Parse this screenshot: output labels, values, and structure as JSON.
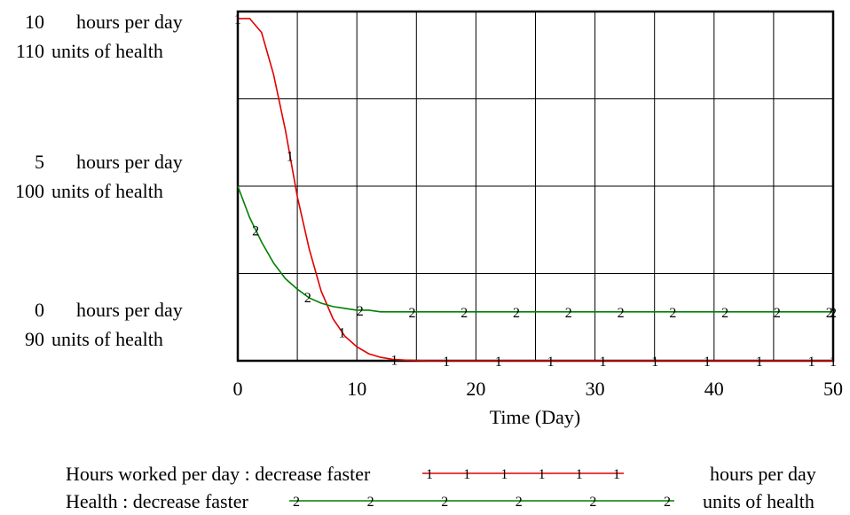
{
  "chart_data": {
    "type": "line",
    "xlabel": "Time (Day)",
    "xlim": [
      0,
      50
    ],
    "x_ticks": [
      "0",
      "10",
      "20",
      "30",
      "40",
      "50"
    ],
    "grid": true,
    "legend_placement": "bottom",
    "axes": {
      "hours": {
        "unit": "hours per day",
        "ylim": [
          0,
          10
        ],
        "tick_values": [
          "10",
          "5",
          "0"
        ],
        "tick_units": [
          "hours per day",
          "hours per day",
          "hours per day"
        ]
      },
      "health": {
        "unit": "units of health",
        "ylim": [
          90,
          110
        ],
        "tick_values": [
          "110",
          "100",
          "90"
        ],
        "tick_units": [
          "units of health",
          "units of health",
          "units of health"
        ]
      }
    },
    "series": [
      {
        "name": "Hours worked per day : decrease faster",
        "marker": "1",
        "color": "#e00000",
        "axis": "hours",
        "unit": "hours per day",
        "x": [
          0,
          1,
          2,
          3,
          4,
          5,
          6,
          7,
          8,
          9,
          10,
          11,
          12,
          13,
          14,
          15,
          16,
          20,
          30,
          40,
          50
        ],
        "y": [
          9.8,
          9.8,
          9.4,
          8.2,
          6.6,
          4.7,
          3.2,
          2.0,
          1.2,
          0.7,
          0.4,
          0.2,
          0.1,
          0.04,
          0.02,
          0.01,
          0,
          0,
          0,
          0,
          0
        ]
      },
      {
        "name": "Health : decrease faster",
        "marker": "2",
        "color": "#008000",
        "axis": "health",
        "unit": "units of health",
        "x": [
          0,
          1,
          2,
          3,
          4,
          5,
          6,
          7,
          8,
          9,
          10,
          11,
          12,
          15,
          20,
          30,
          40,
          50
        ],
        "y": [
          100,
          98.2,
          96.8,
          95.6,
          94.7,
          94.1,
          93.6,
          93.3,
          93.1,
          93.0,
          92.9,
          92.9,
          92.8,
          92.8,
          92.8,
          92.8,
          92.8,
          92.8
        ]
      }
    ],
    "legend": [
      {
        "label": "Hours worked per day : decrease faster",
        "unit": "hours per day"
      },
      {
        "label": "Health : decrease faster",
        "unit": "units of health"
      }
    ]
  }
}
